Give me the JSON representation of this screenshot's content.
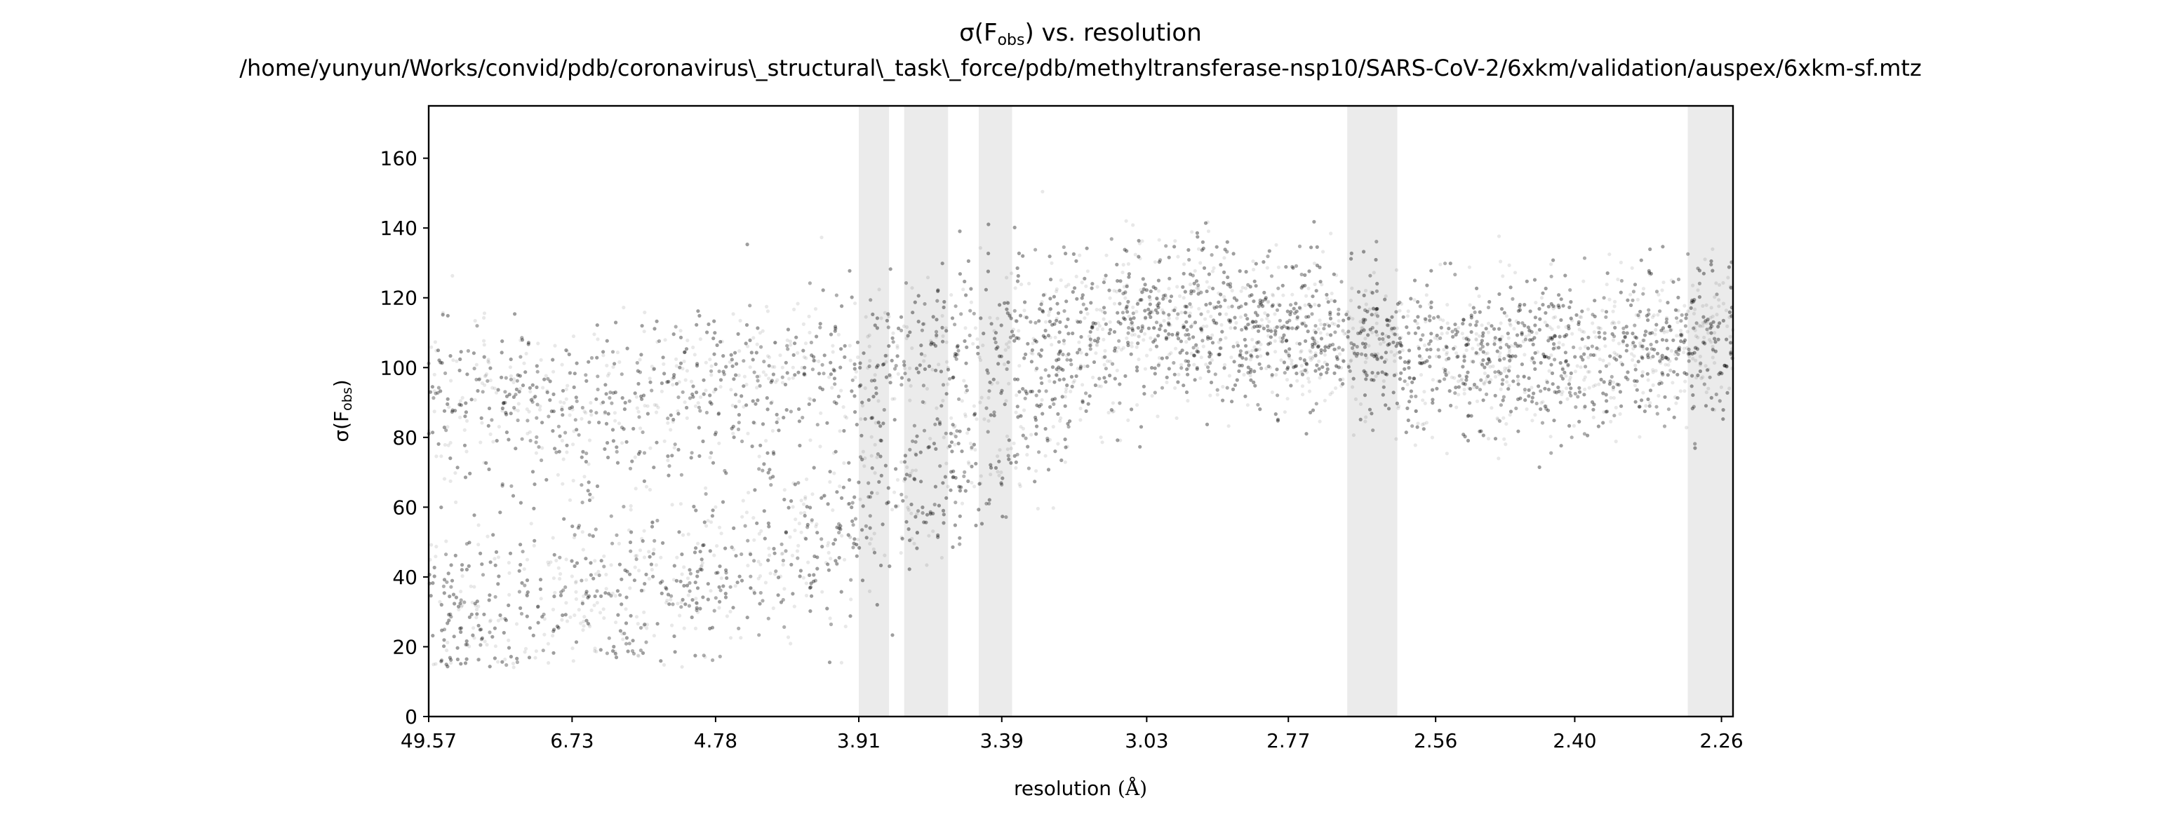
{
  "chart_data": {
    "type": "scatter",
    "title_line1_main": "σ(F",
    "title_line1_sub": "obs",
    "title_line1_tail": ") vs. resolution",
    "title_line2": "/home/yunyun/Works/convid/pdb/coronavirus\\_structural\\_task\\_force/pdb/methyltransferase-nsp10/SARS-CoV-2/6xkm/validation/auspex/6xkm-sf.mtz",
    "xlabel": "resolution",
    "xlabel_unit": "(Å)",
    "ylabel_main": "σ(F",
    "ylabel_sub": "obs",
    "ylabel_tail": ")",
    "x_axis": "1/d^2 (reciprocal squared), ticks labeled as resolution d in Å, decreasing left to right",
    "xlim_d": [
      49.57,
      2.25
    ],
    "ylim": [
      0,
      175
    ],
    "x_tick_labels": [
      "49.57",
      "6.73",
      "4.78",
      "3.91",
      "3.39",
      "3.03",
      "2.77",
      "2.56",
      "2.40",
      "2.26"
    ],
    "y_tick_labels": [
      "0",
      "20",
      "40",
      "60",
      "80",
      "100",
      "120",
      "140",
      "160"
    ],
    "y_ticks": [
      0,
      20,
      40,
      60,
      80,
      100,
      120,
      140,
      160
    ],
    "shaded_resolution_ranges": [
      [
        3.91,
        3.78
      ],
      [
        3.72,
        3.56
      ],
      [
        3.46,
        3.36
      ],
      [
        2.68,
        2.61
      ],
      [
        2.29,
        2.25
      ]
    ],
    "shade_color": "#ebebeb",
    "point_color": "#000000",
    "trend": [
      {
        "d": 12.0,
        "sigma_upper": 92,
        "sigma_lower": 30
      },
      {
        "d": 6.73,
        "sigma_upper": 88,
        "sigma_lower": 35
      },
      {
        "d": 4.78,
        "sigma_upper": 95,
        "sigma_lower": 40
      },
      {
        "d": 3.91,
        "sigma_upper": 98,
        "sigma_lower": 55
      },
      {
        "d": 3.39,
        "sigma_upper": 110,
        "sigma_lower": 78
      },
      {
        "d": 3.03,
        "sigma_upper": 115,
        "sigma_lower": 115
      },
      {
        "d": 2.77,
        "sigma_upper": 110,
        "sigma_lower": 110
      },
      {
        "d": 2.56,
        "sigma_upper": 102,
        "sigma_lower": 102
      },
      {
        "d": 2.4,
        "sigma_upper": 104,
        "sigma_lower": 104
      },
      {
        "d": 2.26,
        "sigma_upper": 108,
        "sigma_lower": 108
      }
    ]
  }
}
